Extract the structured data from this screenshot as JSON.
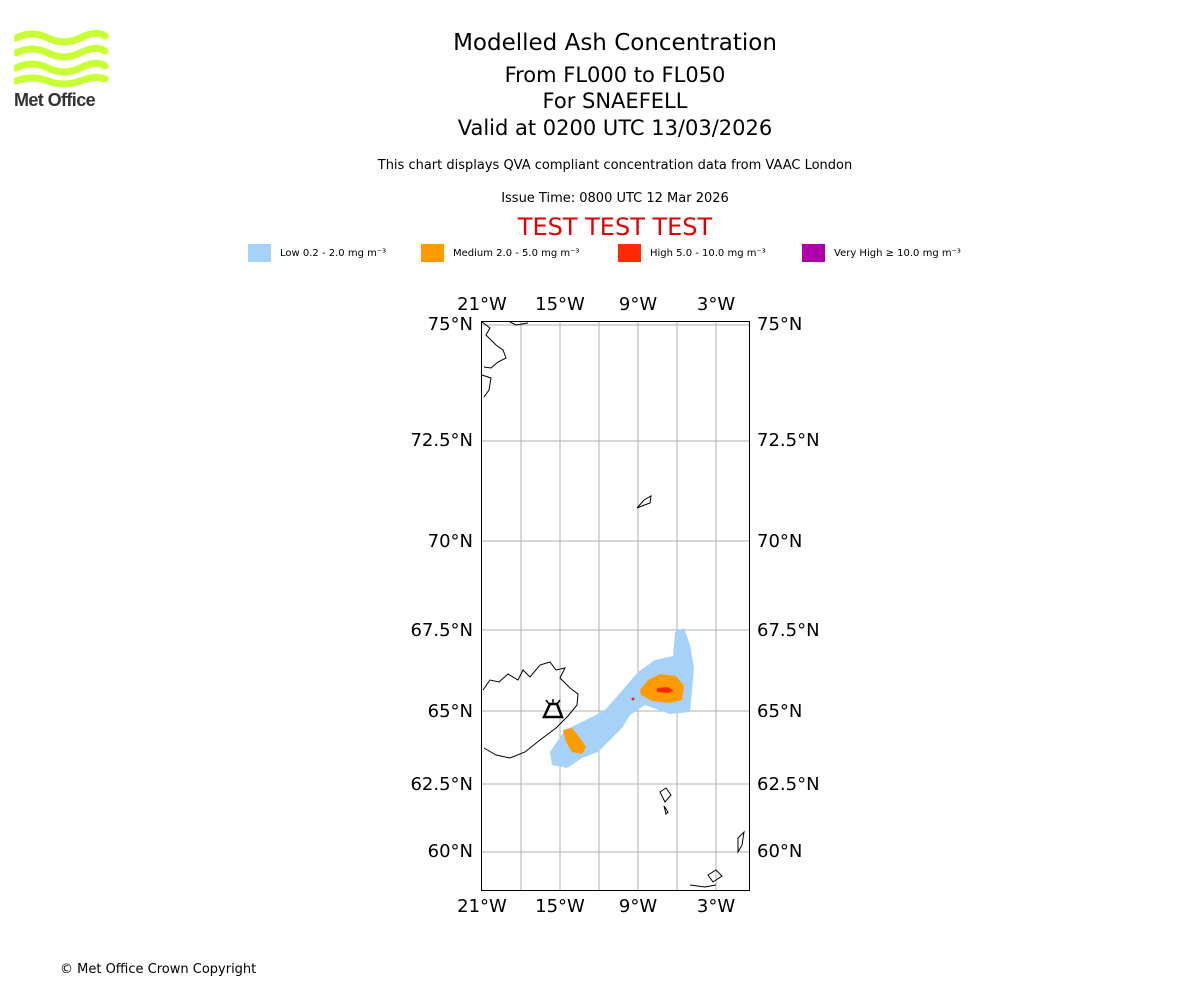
{
  "logo": {
    "text": "Met Office",
    "color": "#c8ff35",
    "icon": "met-office-waves"
  },
  "header": {
    "title": "Modelled Ash Concentration",
    "level_range": "From FL000 to FL050",
    "volcano": "For SNAEFELL",
    "valid_time": "Valid at 0200 UTC 13/03/2026",
    "description": "This chart displays QVA compliant concentration data from VAAC London",
    "issue_time": "Issue Time: 0800 UTC 12 Mar 2026",
    "test_banner": "TEST TEST TEST",
    "test_color": "#e00000"
  },
  "legend": [
    {
      "label": "Low 0.2 - 2.0 mg m⁻³",
      "color": "#a6d2fa"
    },
    {
      "label": "Medium 2.0 - 5.0 mg m⁻³",
      "color": "#ff9b00"
    },
    {
      "label": "High 5.0 - 10.0 mg m⁻³",
      "color": "#ff2a00"
    },
    {
      "label": "Very High  ≥  10.0 mg m⁻³",
      "color": "#ab00ab"
    }
  ],
  "map": {
    "lon_range": [
      -21,
      0
    ],
    "lat_range": [
      59,
      75
    ],
    "lon_ticks": [
      "21°W",
      "15°W",
      "9°W",
      "3°W"
    ],
    "lat_ticks": [
      "75°N",
      "72.5°N",
      "70°N",
      "67.5°N",
      "65°N",
      "62.5°N",
      "60°N"
    ],
    "volcano_marker": {
      "name": "SNAEFELL",
      "icon": "volcano-icon",
      "lon": -15.6,
      "lat": 64.9
    }
  },
  "footer": {
    "copyright": "© Met Office Crown Copyright"
  }
}
